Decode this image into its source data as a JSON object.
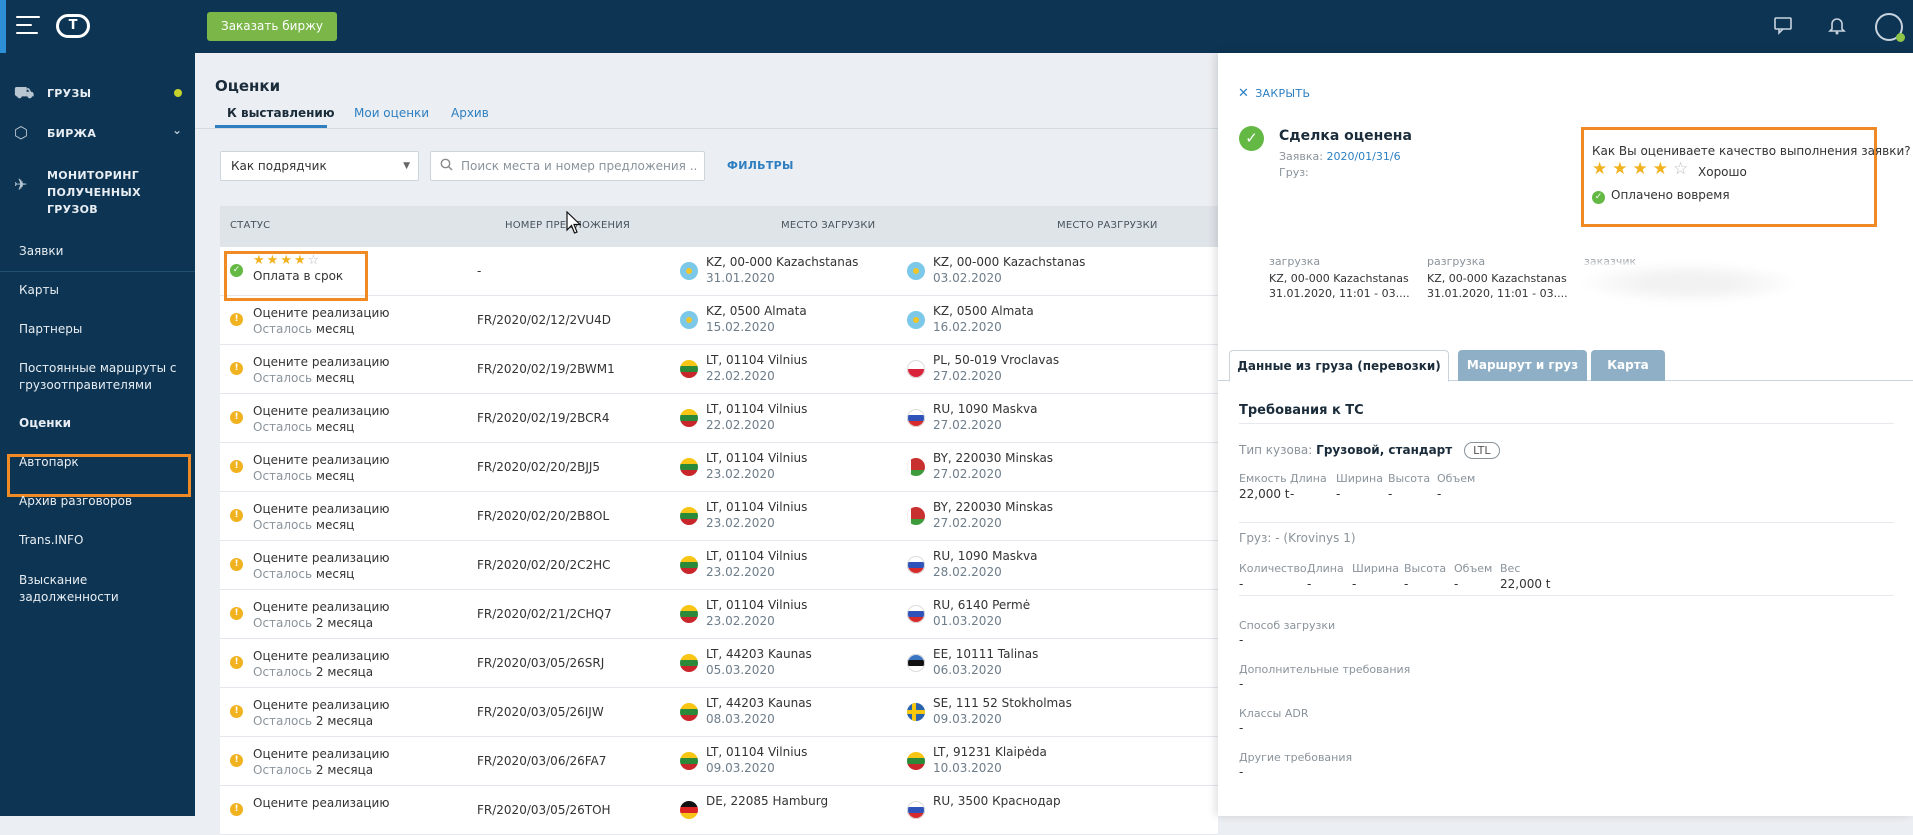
{
  "topbar": {
    "order_button": "Заказать биржу",
    "icons": [
      "chat-icon",
      "bell-icon",
      "user-icon"
    ]
  },
  "sidebar": {
    "main": [
      {
        "label": "ГРУЗЫ",
        "icon": "cargo-icon"
      },
      {
        "label": "БИРЖА",
        "icon": "box-icon"
      },
      {
        "label": "МОНИТОРИНГ",
        "label2": "ПОЛУЧЕННЫХ ГРУЗОВ",
        "icon": "satellite-icon"
      }
    ],
    "items": [
      {
        "label": "Заявки"
      },
      {
        "label": "Карты"
      },
      {
        "label": "Партнеры"
      },
      {
        "label": "Постоянные маршруты с",
        "label2": "грузоотправителями"
      },
      {
        "label": "Оценки"
      },
      {
        "label": "Автопарк"
      },
      {
        "label": "Архив разговоров"
      },
      {
        "label": "Trans.INFO"
      },
      {
        "label": "Взыскание задолженности"
      }
    ]
  },
  "main": {
    "title": "Оценки",
    "tabs": [
      "К выставлению",
      "Мои оценки",
      "Архив"
    ],
    "select_value": "Как подрядчик",
    "search_placeholder": "Поиск места и номер предложения ...",
    "filters_label": "ФИЛЬТРЫ",
    "columns": [
      "СТАТУС",
      "НОМЕР ПРЕДЛОЖЕНИЯ",
      "МЕСТО ЗАГРУЗКИ",
      "МЕСТО РАЗГРУЗКИ"
    ],
    "rows": [
      {
        "status": "Оплата в срок",
        "rating": 4,
        "remain_lbl": "",
        "remain": "",
        "number": "-",
        "from": "KZ, 00-000 Kazachstanas",
        "from_date": "31.01.2020",
        "from_flag": "kz",
        "to": "KZ, 00-000 Kazachstanas",
        "to_date": "03.02.2020",
        "to_flag": "kz"
      },
      {
        "status": "Оцените реализацию",
        "remain_lbl": "Осталось",
        "remain": "месяц",
        "number": "FR/2020/02/12/2VU4D",
        "from": "KZ, 0500 Almata",
        "from_date": "15.02.2020",
        "from_flag": "kz",
        "to": "KZ, 0500 Almata",
        "to_date": "16.02.2020",
        "to_flag": "kz"
      },
      {
        "status": "Оцените реализацию",
        "remain_lbl": "Осталось",
        "remain": "месяц",
        "number": "FR/2020/02/19/2BWM1",
        "from": "LT, 01104 Vilnius",
        "from_date": "22.02.2020",
        "from_flag": "lt",
        "to": "PL, 50-019 Vroclavas",
        "to_date": "27.02.2020",
        "to_flag": "pl"
      },
      {
        "status": "Оцените реализацию",
        "remain_lbl": "Осталось",
        "remain": "месяц",
        "number": "FR/2020/02/19/2BCR4",
        "from": "LT, 01104 Vilnius",
        "from_date": "22.02.2020",
        "from_flag": "lt",
        "to": "RU, 1090 Maskva",
        "to_date": "27.02.2020",
        "to_flag": "ru"
      },
      {
        "status": "Оцените реализацию",
        "remain_lbl": "Осталось",
        "remain": "месяц",
        "number": "FR/2020/02/20/2BJJ5",
        "from": "LT, 01104 Vilnius",
        "from_date": "23.02.2020",
        "from_flag": "lt",
        "to": "BY, 220030 Minskas",
        "to_date": "27.02.2020",
        "to_flag": "by"
      },
      {
        "status": "Оцените реализацию",
        "remain_lbl": "Осталось",
        "remain": "месяц",
        "number": "FR/2020/02/20/2B8OL",
        "from": "LT, 01104 Vilnius",
        "from_date": "23.02.2020",
        "from_flag": "lt",
        "to": "BY, 220030 Minskas",
        "to_date": "27.02.2020",
        "to_flag": "by"
      },
      {
        "status": "Оцените реализацию",
        "remain_lbl": "Осталось",
        "remain": "месяц",
        "number": "FR/2020/02/20/2C2HC",
        "from": "LT, 01104 Vilnius",
        "from_date": "23.02.2020",
        "from_flag": "lt",
        "to": "RU, 1090 Maskva",
        "to_date": "28.02.2020",
        "to_flag": "ru"
      },
      {
        "status": "Оцените реализацию",
        "remain_lbl": "Осталось",
        "remain": "2 месяца",
        "number": "FR/2020/02/21/2CHQ7",
        "from": "LT, 01104 Vilnius",
        "from_date": "23.02.2020",
        "from_flag": "lt",
        "to": "RU, 6140 Permė",
        "to_date": "01.03.2020",
        "to_flag": "ru"
      },
      {
        "status": "Оцените реализацию",
        "remain_lbl": "Осталось",
        "remain": "2 месяца",
        "number": "FR/2020/03/05/26SRJ",
        "from": "LT, 44203 Kaunas",
        "from_date": "05.03.2020",
        "from_flag": "lt",
        "to": "EE, 10111 Talinas",
        "to_date": "06.03.2020",
        "to_flag": "ee"
      },
      {
        "status": "Оцените реализацию",
        "remain_lbl": "Осталось",
        "remain": "2 месяца",
        "number": "FR/2020/03/05/26IJW",
        "from": "LT, 44203 Kaunas",
        "from_date": "08.03.2020",
        "from_flag": "lt",
        "to": "SE, 111 52 Stokholmas",
        "to_date": "09.03.2020",
        "to_flag": "se"
      },
      {
        "status": "Оцените реализацию",
        "remain_lbl": "Осталось",
        "remain": "2 месяца",
        "number": "FR/2020/03/06/26FA7",
        "from": "LT, 01104 Vilnius",
        "from_date": "09.03.2020",
        "from_flag": "lt",
        "to": "LT, 91231 Klaipėda",
        "to_date": "10.03.2020",
        "to_flag": "lt"
      },
      {
        "status": "Оцените реализацию",
        "remain_lbl": "",
        "remain": "",
        "number": "FR/2020/03/05/26TOH",
        "from": "DE, 22085 Hamburg",
        "from_date": "",
        "from_flag": "de",
        "to": "RU, 3500 Краснодар",
        "to_date": "",
        "to_flag": "ru"
      }
    ]
  },
  "panel": {
    "close": "ЗАКРЫТЬ",
    "deal_title": "Сделка оценена",
    "request_label": "Заявка:",
    "request_link": "2020/01/31/6",
    "cargo_label": "Груз:",
    "rating_question": "Как Вы оцениваете качество выполнения заявки?",
    "rating": 4,
    "rating_word": "Хорошо",
    "paid": "Оплачено вовремя",
    "loading_h": "загрузка",
    "loading_v1": "KZ, 00-000 Kazachstanas",
    "loading_v2": "31.01.2020, 11:01 - 03....",
    "unloading_h": "разгрузка",
    "unloading_v1": "KZ, 00-000 Kazachstanas",
    "unloading_v2": "31.01.2020, 11:01 - 03....",
    "customer_h": "заказчик",
    "tabs": [
      "Данные из груза (перевозки)",
      "Маршрут и груз",
      "Карта"
    ],
    "req_title": "Требования к ТС",
    "body_type_lbl": "Тип кузова:",
    "body_type_val": "Грузовой, стандарт",
    "ltl": "LTL",
    "cap_cols": [
      "Емкость",
      "Длина",
      "Ширина",
      "Высота",
      "Объем"
    ],
    "cap_vals": [
      "22,000 t",
      "-",
      "-",
      "-",
      "-"
    ],
    "cargo_line": "Груз: - (Krovinys 1)",
    "cargo_cols": [
      "Количество",
      "Длина",
      "Ширина",
      "Высота",
      "Объем",
      "Вес"
    ],
    "cargo_vals": [
      "-",
      "-",
      "-",
      "-",
      "-",
      "22,000 t"
    ],
    "load_method_lbl": "Способ загрузки",
    "load_method_val": "-",
    "extra_lbl": "Дополнительные требования",
    "extra_val": "-",
    "adr_lbl": "Классы ADR",
    "adr_val": "-",
    "other_lbl": "Другие требования",
    "other_val": "-"
  }
}
